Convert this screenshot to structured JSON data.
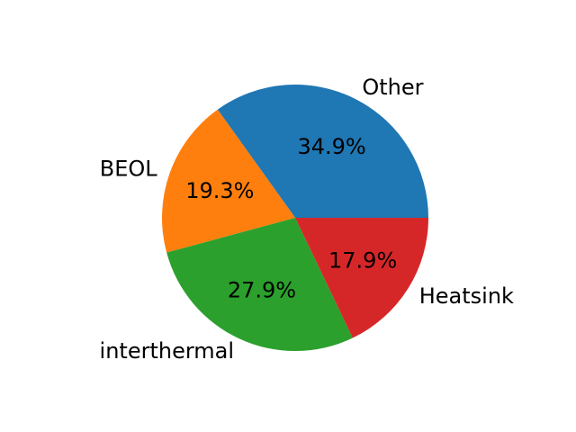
{
  "chart_data": {
    "type": "pie",
    "title": "",
    "slices": [
      {
        "label": "Other",
        "value": 34.9,
        "pct_label": "34.9%",
        "color": "#1f77b4"
      },
      {
        "label": "BEOL",
        "value": 19.3,
        "pct_label": "19.3%",
        "color": "#ff7f0e"
      },
      {
        "label": "interthermal",
        "value": 27.9,
        "pct_label": "27.9%",
        "color": "#2ca02c"
      },
      {
        "label": "Heatsink",
        "value": 17.9,
        "pct_label": "17.9%",
        "color": "#d62728"
      }
    ],
    "start_angle_deg": 0,
    "direction": "counterclockwise",
    "legend": "none"
  }
}
